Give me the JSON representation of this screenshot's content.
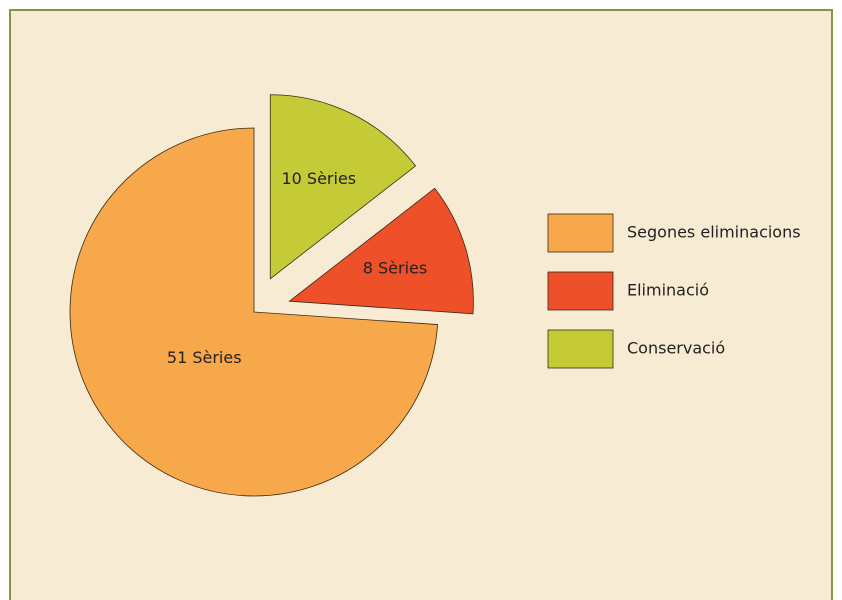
{
  "chart_data": {
    "type": "pie",
    "categories": [
      "Segones eliminacions",
      "Eliminació",
      "Conservació"
    ],
    "values": [
      51,
      8,
      10
    ],
    "value_labels": [
      "51 Sèries",
      "8 Sèries",
      "10 Sèries"
    ],
    "colors": [
      "#f7a84b",
      "#ee5029",
      "#c4cb36"
    ],
    "legend": "right"
  }
}
